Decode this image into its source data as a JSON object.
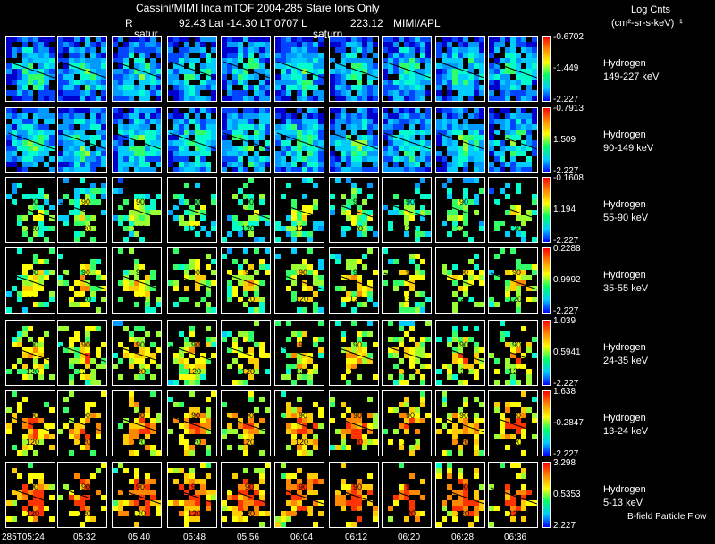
{
  "header": {
    "title_line": "Cassini/MIMI Inca mTOF  2004-285    Stare    Ions Only",
    "r_label": "R",
    "position_line": "92.43 Lat -14.30 LT 0707 L",
    "l_value": "223.12",
    "source": "MIMI/APL",
    "saturn_label_1": "satur",
    "saturn_label_2": "saturn",
    "units_title": "Log Cnts",
    "units": "(cm²-sr-s-keV)⁻¹"
  },
  "footer": {
    "bfield_label": "B-field Particle Flow"
  },
  "chart_data": {
    "type": "heatmap",
    "time_labels": [
      "285T05:24",
      "05:32",
      "05:40",
      "05:48",
      "05:56",
      "06:04",
      "06:12",
      "06:20",
      "06:28",
      "06:36"
    ],
    "contour_labels": [
      "90",
      "120"
    ],
    "rows": [
      {
        "species": "Hydrogen",
        "energy": "149-227 keV",
        "cbar_max": "-0.6702",
        "cbar_mid": "-1.449",
        "cbar_min": "-2.227"
      },
      {
        "species": "Hydrogen",
        "energy": "90-149 keV",
        "cbar_max": "-0.7913",
        "cbar_mid": "1.509",
        "cbar_min": "-2.227"
      },
      {
        "species": "Hydrogen",
        "energy": "55-90 keV",
        "cbar_max": "-0.1608",
        "cbar_mid": "1.194",
        "cbar_min": "-2.227"
      },
      {
        "species": "Hydrogen",
        "energy": "35-55 keV",
        "cbar_max": "0.2288",
        "cbar_mid": "0.9992",
        "cbar_min": "-2.227"
      },
      {
        "species": "Hydrogen",
        "energy": "24-35 keV",
        "cbar_max": "1.039",
        "cbar_mid": "0.5941",
        "cbar_min": "-2.227"
      },
      {
        "species": "Hydrogen",
        "energy": "13-24 keV",
        "cbar_max": "1.638",
        "cbar_mid": "-0.2847",
        "cbar_min": "-2.227"
      },
      {
        "species": "Hydrogen",
        "energy": "5-13 keV",
        "cbar_max": "3.298",
        "cbar_mid": "0.5353",
        "cbar_min": "2.227"
      }
    ],
    "colors": [
      "#0000cc",
      "#0044ff",
      "#0099ff",
      "#00ccff",
      "#00ffcc",
      "#33ff66",
      "#99ff33",
      "#ffff00",
      "#ffcc00",
      "#ff8800",
      "#ff3300"
    ],
    "row_level": [
      0.12,
      0.15,
      0.32,
      0.45,
      0.5,
      0.62,
      0.7
    ]
  }
}
